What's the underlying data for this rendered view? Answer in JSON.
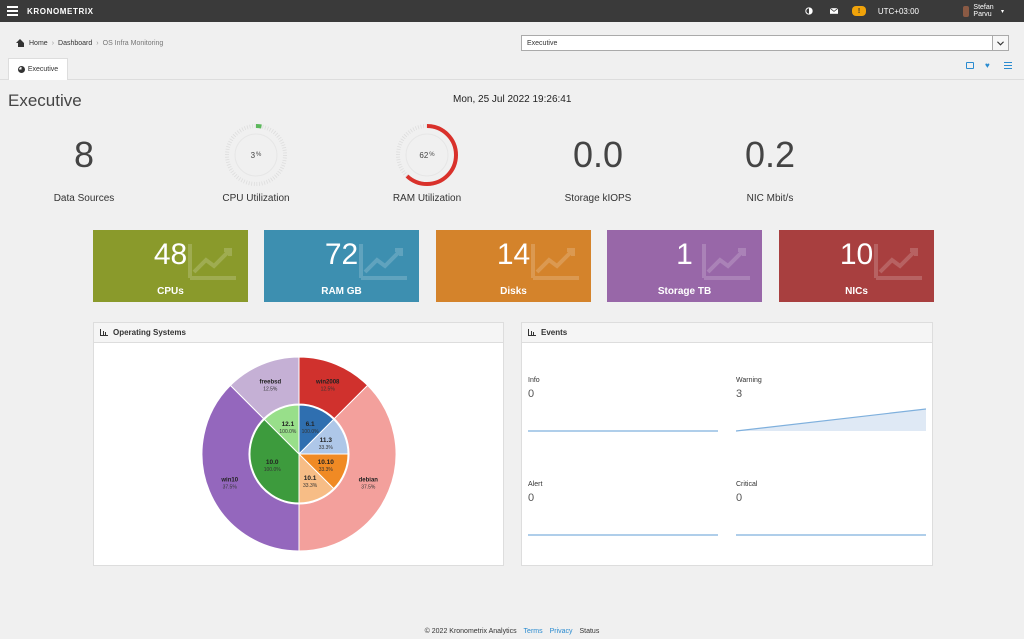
{
  "header": {
    "brand": "KRONOMETRIX",
    "warning_count": "!",
    "timezone": "UTC+03:00",
    "user": "Stefan Parvu"
  },
  "breadcrumb": {
    "home": "Home",
    "dashboard": "Dashboard",
    "current": "OS Infra Monitoring"
  },
  "dashboard_select": {
    "value": "Executive"
  },
  "tab": {
    "label": "Executive"
  },
  "page": {
    "title": "Executive",
    "date": "Mon, 25 Jul 2022 19:26:41"
  },
  "kpis": {
    "data_sources": {
      "value": "8",
      "label": "Data Sources"
    },
    "cpu": {
      "value": "3",
      "unit": "%",
      "label": "CPU Utilization",
      "percent": 3,
      "color": "#5cb85c"
    },
    "ram": {
      "value": "62",
      "unit": "%",
      "label": "RAM Utilization",
      "percent": 62,
      "color": "#d9312b"
    },
    "storage": {
      "value": "0.0",
      "label": "Storage kIOPS"
    },
    "nic": {
      "value": "0.2",
      "label": "NIC Mbit/s"
    }
  },
  "tiles": [
    {
      "value": "48",
      "label": "CPUs",
      "color": "#8a9a2b"
    },
    {
      "value": "72",
      "label": "RAM GB",
      "color": "#3d8fb0"
    },
    {
      "value": "14",
      "label": "Disks",
      "color": "#d4832b"
    },
    {
      "value": "1",
      "label": "Storage TB",
      "color": "#9867a8"
    },
    {
      "value": "10",
      "label": "NICs",
      "color": "#a83f3f"
    }
  ],
  "os_panel": {
    "title": "Operating Systems"
  },
  "events_panel": {
    "title": "Events"
  },
  "events": [
    {
      "name": "Info",
      "value": "0",
      "trend": [
        0,
        0
      ]
    },
    {
      "name": "Warning",
      "value": "3",
      "trend": [
        0,
        3
      ]
    },
    {
      "name": "Alert",
      "value": "0",
      "trend": [
        0,
        0
      ]
    },
    {
      "name": "Critical",
      "value": "0",
      "trend": [
        0,
        0
      ]
    }
  ],
  "chart_data": {
    "type": "pie",
    "outer": [
      {
        "name": "win2008",
        "pct": "12.5%",
        "value": 12.5,
        "color": "#d0312d"
      },
      {
        "name": "debian",
        "pct": "37.5%",
        "value": 37.5,
        "color": "#f3a09c"
      },
      {
        "name": "win10",
        "pct": "37.5%",
        "value": 37.5,
        "color": "#9467bd"
      },
      {
        "name": "freebsd",
        "pct": "12.5%",
        "value": 12.5,
        "color": "#c5b0d5"
      }
    ],
    "inner": [
      {
        "name": "6.1",
        "pct": "100.0%",
        "value": 12.5,
        "color": "#2f6fb0"
      },
      {
        "name": "11.3",
        "pct": "33.3%",
        "value": 12.5,
        "color": "#aec7e8"
      },
      {
        "name": "10.10",
        "pct": "33.3%",
        "value": 12.5,
        "color": "#f08a24"
      },
      {
        "name": "10.1",
        "pct": "33.3%",
        "value": 12.5,
        "color": "#f7bd86"
      },
      {
        "name": "10.0",
        "pct": "100.0%",
        "value": 37.5,
        "color": "#3d9b3d"
      },
      {
        "name": "12.1",
        "pct": "100.0%",
        "value": 12.5,
        "color": "#98df8a"
      }
    ]
  },
  "footer": {
    "copyright": "© 2022 Kronometrix Analytics",
    "terms": "Terms",
    "privacy": "Privacy",
    "status": "Status"
  }
}
